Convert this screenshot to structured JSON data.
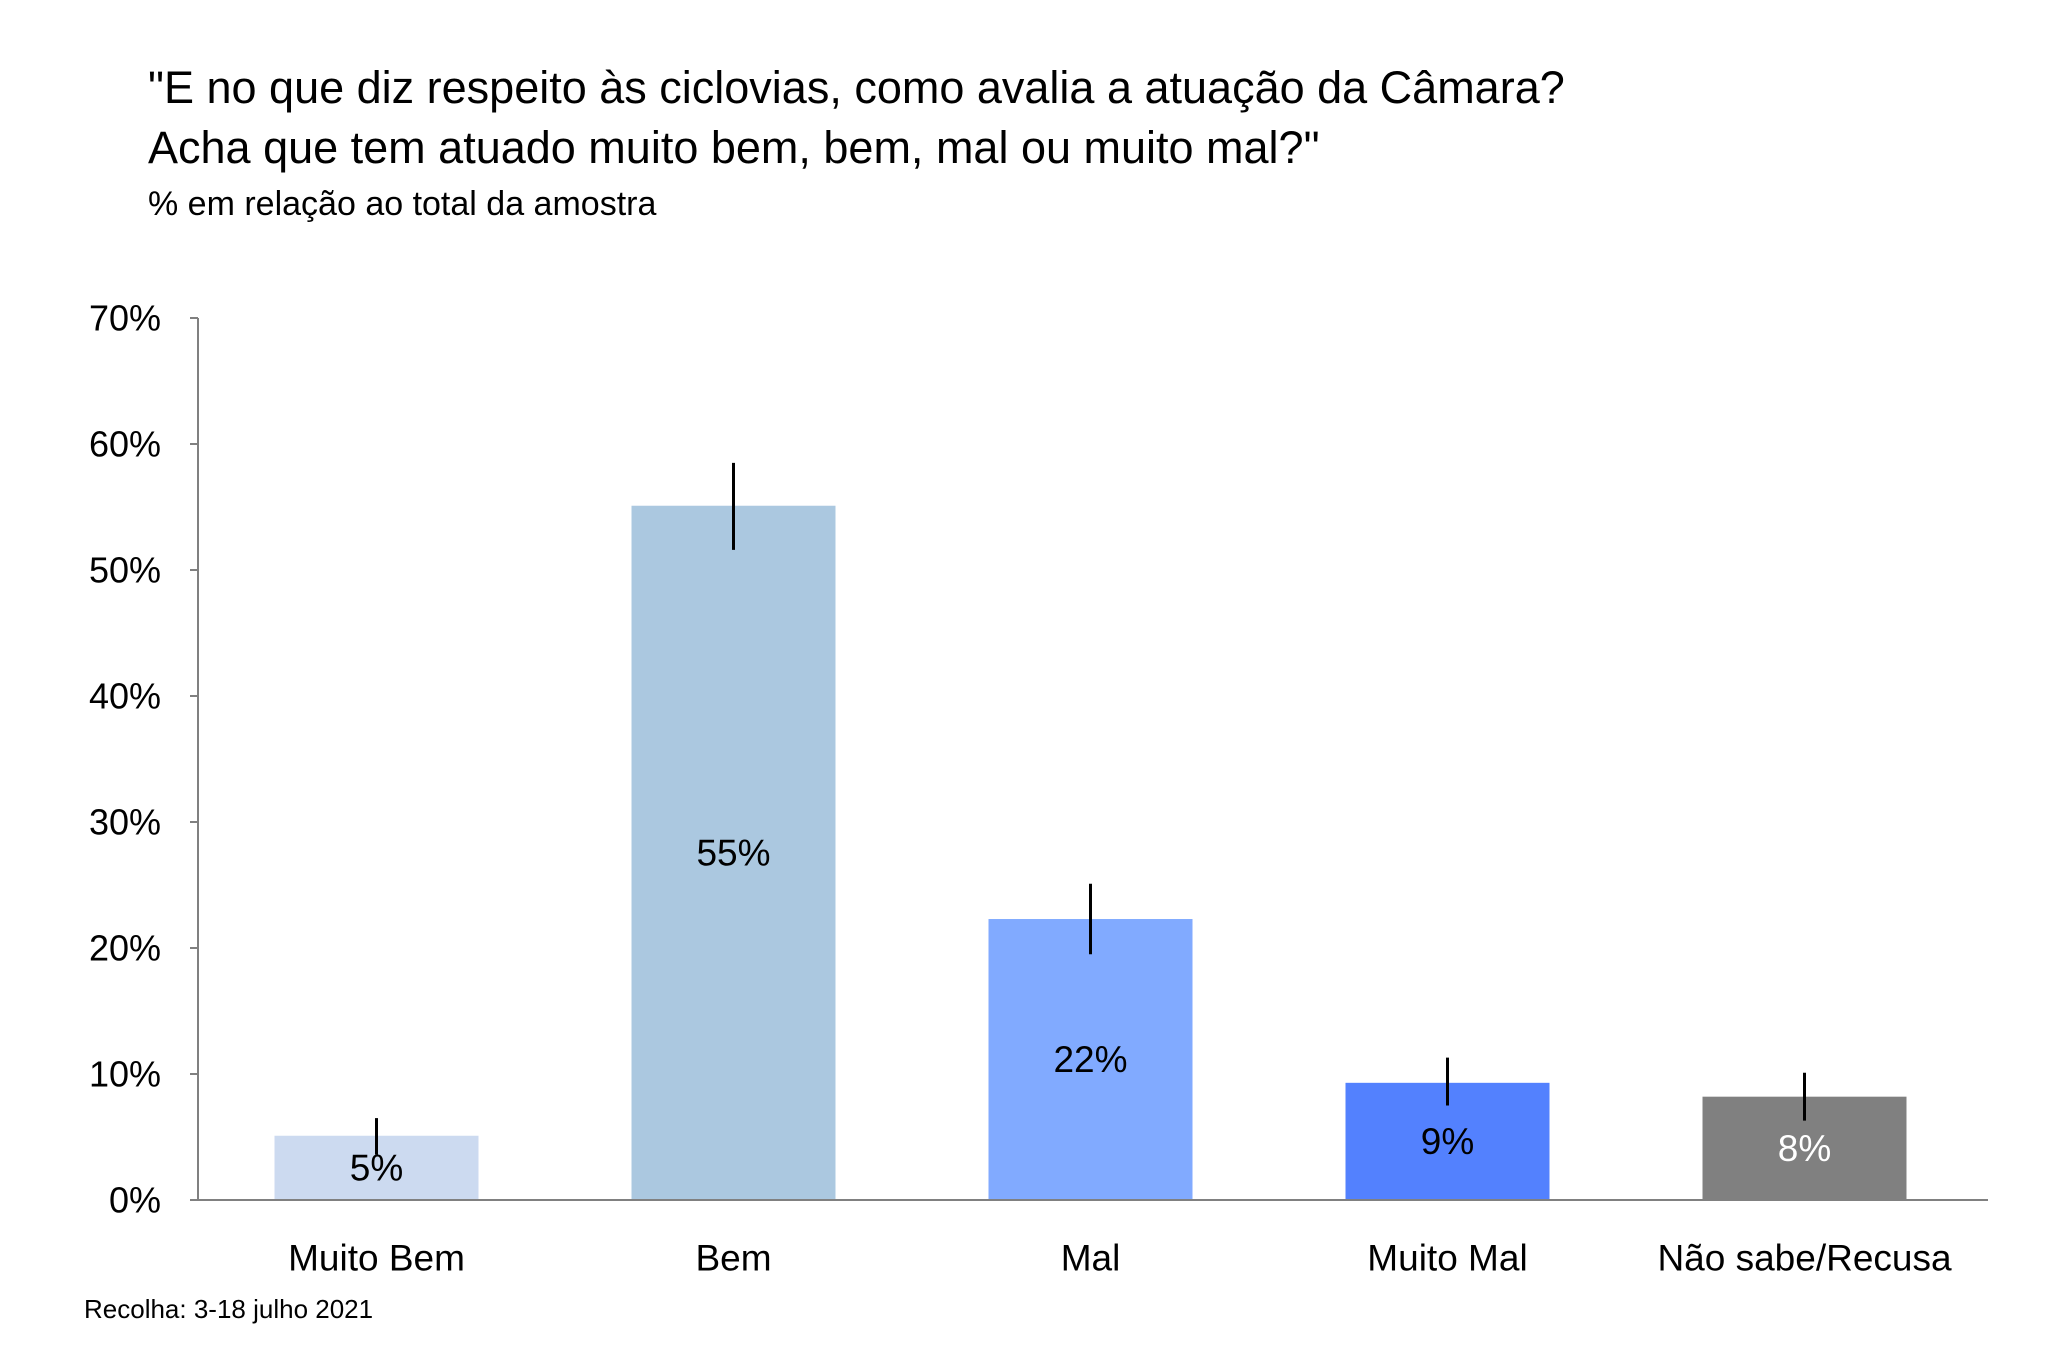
{
  "chart_data": {
    "type": "bar",
    "title": [
      "\"E no que diz respeito às ciclovias, como avalia a atuação da Câmara?",
      "Acha que tem atuado muito bem, bem, mal ou muito mal?\""
    ],
    "subtitle": "% em relação ao total da amostra",
    "xlabel": "",
    "ylabel": "",
    "categories": [
      "Muito Bem",
      "Bem",
      "Mal",
      "Muito Mal",
      "Não sabe/Recusa"
    ],
    "values": [
      5.1,
      55.1,
      22.3,
      9.3,
      8.2
    ],
    "value_labels": [
      "5%",
      "55%",
      "22%",
      "9%",
      "8%"
    ],
    "error_bars": [
      {
        "low": 3.6,
        "high": 6.5
      },
      {
        "low": 51.6,
        "high": 58.5
      },
      {
        "low": 19.5,
        "high": 25.1
      },
      {
        "low": 7.5,
        "high": 11.3
      },
      {
        "low": 6.3,
        "high": 10.1
      }
    ],
    "colors": [
      "#ccdaf0",
      "#abc8e0",
      "#81aaff",
      "#5381fe",
      "#808080"
    ],
    "label_colors": [
      "#000000",
      "#000000",
      "#000000",
      "#000000",
      "#ffffff"
    ],
    "ylim": [
      0,
      70
    ],
    "yticks": [
      0,
      10,
      20,
      30,
      40,
      50,
      60,
      70
    ],
    "ytick_labels": [
      "0%",
      "10%",
      "20%",
      "30%",
      "40%",
      "50%",
      "60%",
      "70%"
    ],
    "grid": false,
    "legend": "none",
    "axis_color": "#808080"
  },
  "footer": {
    "source_note": "Recolha: 3-18 julho 2021"
  }
}
